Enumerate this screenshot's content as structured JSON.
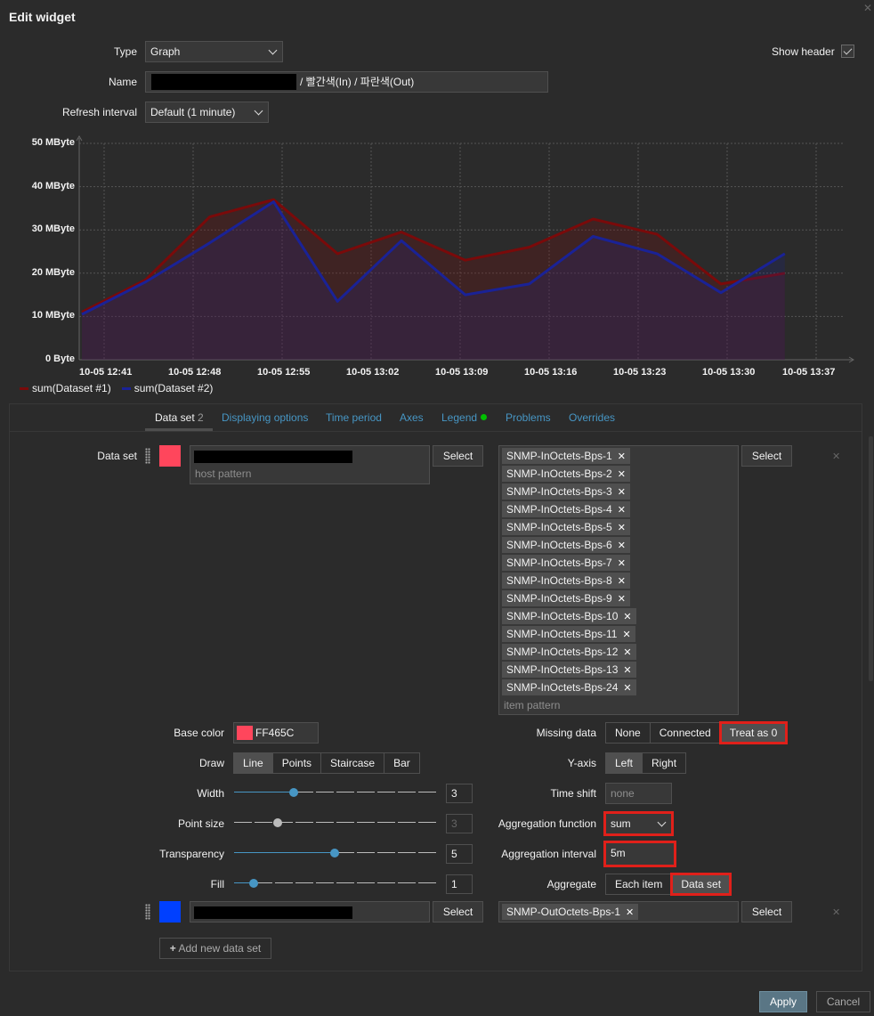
{
  "dialog": {
    "title": "Edit widget"
  },
  "form": {
    "type_label": "Type",
    "type_value": "Graph",
    "show_header_label": "Show header",
    "name_label": "Name",
    "name_suffix": "/ 빨간색(In) / 파란색(Out)",
    "refresh_label": "Refresh interval",
    "refresh_value": "Default (1 minute)"
  },
  "chart_data": {
    "type": "line",
    "x": [
      "10-05 12:41",
      "10-05 12:48",
      "10-05 12:55",
      "10-05 13:02",
      "10-05 13:09",
      "10-05 13:16",
      "10-05 13:23",
      "10-05 13:30",
      "10-05 13:37"
    ],
    "y_ticks": [
      "0 Byte",
      "10 MByte",
      "20 MByte",
      "30 MByte",
      "40 MByte",
      "50 MByte"
    ],
    "ylim": [
      0,
      50
    ],
    "grid": true,
    "legend_position": "bottom-left",
    "series": [
      {
        "name": "sum(Dataset #1)",
        "color": "#7a0a0a",
        "points": [
          [
            0,
            11
          ],
          [
            1,
            18.5
          ],
          [
            2,
            33
          ],
          [
            3,
            37
          ],
          [
            4,
            24.5
          ],
          [
            5,
            29.5
          ],
          [
            6,
            23
          ],
          [
            7,
            26
          ],
          [
            8,
            32.5
          ],
          [
            9,
            29
          ],
          [
            10,
            17.5
          ],
          [
            11,
            20
          ]
        ]
      },
      {
        "name": "sum(Dataset #2)",
        "color": "#1a2296",
        "points": [
          [
            0,
            10.5
          ],
          [
            1,
            18
          ],
          [
            2,
            27
          ],
          [
            3,
            36.5
          ],
          [
            4,
            13.5
          ],
          [
            5,
            27.5
          ],
          [
            6,
            15
          ],
          [
            7,
            17.5
          ],
          [
            8,
            28.5
          ],
          [
            9,
            24.5
          ],
          [
            10,
            15.5
          ],
          [
            11,
            24.5
          ]
        ]
      }
    ]
  },
  "tabs": [
    {
      "label": "Data set",
      "count": "2"
    },
    {
      "label": "Displaying options"
    },
    {
      "label": "Time period"
    },
    {
      "label": "Axes"
    },
    {
      "label": "Legend"
    },
    {
      "label": "Problems"
    },
    {
      "label": "Overrides"
    }
  ],
  "dataset1": {
    "label": "Data set",
    "color": "#FF465C",
    "host_placeholder": "host pattern",
    "select_label": "Select",
    "items": [
      "SNMP-InOctets-Bps-1",
      "SNMP-InOctets-Bps-2",
      "SNMP-InOctets-Bps-3",
      "SNMP-InOctets-Bps-4",
      "SNMP-InOctets-Bps-5",
      "SNMP-InOctets-Bps-6",
      "SNMP-InOctets-Bps-7",
      "SNMP-InOctets-Bps-8",
      "SNMP-InOctets-Bps-9",
      "SNMP-InOctets-Bps-10",
      "SNMP-InOctets-Bps-11",
      "SNMP-InOctets-Bps-12",
      "SNMP-InOctets-Bps-13",
      "SNMP-InOctets-Bps-24"
    ],
    "item_placeholder": "item pattern",
    "base_color_label": "Base color",
    "base_color_value": "FF465C",
    "draw_label": "Draw",
    "draw_options": [
      "Line",
      "Points",
      "Staircase",
      "Bar"
    ],
    "draw_selected": "Line",
    "width_label": "Width",
    "width_value": "3",
    "point_size_label": "Point size",
    "point_size_value": "3",
    "transparency_label": "Transparency",
    "transparency_value": "5",
    "fill_label": "Fill",
    "fill_value": "1",
    "missing_label": "Missing data",
    "missing_options": [
      "None",
      "Connected",
      "Treat as 0"
    ],
    "missing_selected": "Treat as 0",
    "yaxis_label": "Y-axis",
    "yaxis_options": [
      "Left",
      "Right"
    ],
    "yaxis_selected": "Left",
    "timeshift_label": "Time shift",
    "timeshift_placeholder": "none",
    "aggfunc_label": "Aggregation function",
    "aggfunc_value": "sum",
    "agginterval_label": "Aggregation interval",
    "agginterval_value": "5m",
    "aggregate_label": "Aggregate",
    "aggregate_options": [
      "Each item",
      "Data set"
    ],
    "aggregate_selected": "Data set",
    "accent_color": "#4796c4"
  },
  "dataset2": {
    "color": "#0040FF",
    "select_label": "Select",
    "items": [
      "SNMP-OutOctets-Bps-1"
    ]
  },
  "add_dataset_label": "Add new data set",
  "footer": {
    "apply_label": "Apply",
    "cancel_label": "Cancel"
  }
}
